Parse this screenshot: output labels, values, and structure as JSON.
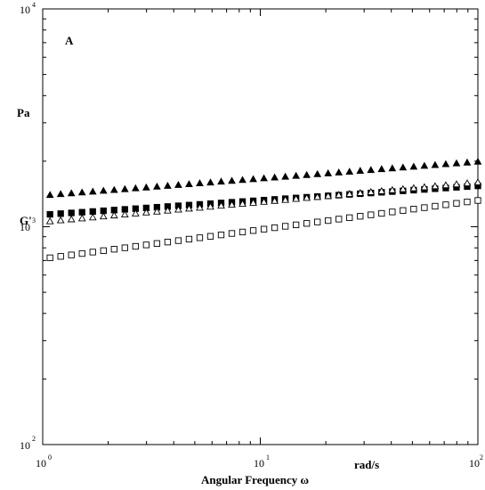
{
  "chart_data": {
    "type": "scatter",
    "panel_label": "A",
    "xscale": "log",
    "yscale": "log",
    "xlim": [
      0,
      100
    ],
    "ylim": [
      100,
      10000
    ],
    "x_ticks": [
      {
        "base": "10",
        "exp": "0"
      },
      {
        "base": "10",
        "exp": "1"
      },
      {
        "base": "10",
        "exp": "2"
      }
    ],
    "y_ticks": [
      {
        "base": "10",
        "exp": "2"
      },
      {
        "base": "10",
        "exp": "3"
      },
      {
        "base": "10",
        "exp": "4"
      }
    ],
    "ylabel_name": "G'",
    "ylabel_unit": "Pa",
    "xlabel": "Angular Frequency ω",
    "xlabel_unit": "rad/s",
    "x_range_data": [
      1.0,
      100.0
    ],
    "series": [
      {
        "marker": "filled-triangle",
        "y_start": 1400,
        "y_end": 1990
      },
      {
        "marker": "filled-square",
        "y_start": 1140,
        "y_end": 1540
      },
      {
        "marker": "open-triangle",
        "y_start": 1060,
        "y_end": 1600
      },
      {
        "marker": "open-square",
        "y_start": 720,
        "y_end": 1320
      }
    ],
    "points_per_series": 41,
    "grid": false
  }
}
